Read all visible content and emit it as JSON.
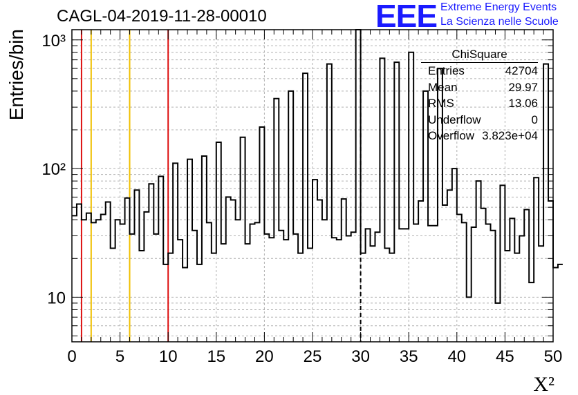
{
  "chart_title": "CAGL-04-2019-11-28-00010",
  "logo": {
    "mark": "EEE",
    "line1": "Extreme Energy Events",
    "line2": "La Scienza nelle Scuole"
  },
  "stats": {
    "title": "ChiSquare",
    "rows": [
      {
        "key": "Entries",
        "value": "42704"
      },
      {
        "key": "Mean",
        "value": "29.97"
      },
      {
        "key": "RMS",
        "value": "13.06"
      },
      {
        "key": "Underflow",
        "value": "0"
      },
      {
        "key": "Overflow",
        "value": "3.823e+04"
      }
    ]
  },
  "colors": {
    "histogram": "#000000",
    "red_lines": "#dd1111",
    "yellow_lines": "#f0c000",
    "grid": "#b0b0b0",
    "logo": "#1a1aff"
  },
  "chart_data": {
    "type": "histogram",
    "title": "CAGL-04-2019-11-28-00010",
    "xlabel": "X²",
    "ylabel": "Entries/bin",
    "yscale": "log",
    "xlim": [
      0,
      50
    ],
    "ylim": [
      4.5,
      1200
    ],
    "grid": true,
    "bin_width": 0.5,
    "x_ticks": [
      0,
      5,
      10,
      15,
      20,
      25,
      30,
      35,
      40,
      45,
      50
    ],
    "y_ticks": [
      {
        "value": 10,
        "label": "10"
      },
      {
        "value": 100,
        "label": "10²"
      },
      {
        "value": 1000,
        "label": "10³"
      }
    ],
    "values": [
      43,
      53,
      40,
      45,
      38,
      40,
      44,
      55,
      24,
      40,
      37,
      59,
      31,
      68,
      23,
      46,
      76,
      31,
      87,
      18,
      22,
      110,
      28,
      17,
      118,
      33,
      18,
      125,
      38,
      22,
      160,
      26,
      60,
      57,
      40,
      175,
      26,
      37,
      38,
      210,
      31,
      29,
      350,
      33,
      28,
      400,
      31,
      22,
      550,
      24,
      82,
      57,
      40,
      650,
      29,
      28,
      58,
      30,
      32,
      1200,
      22,
      34,
      25,
      32,
      720,
      24,
      22,
      670,
      34,
      34,
      800,
      37,
      56,
      400,
      36,
      36,
      600,
      52,
      68,
      100,
      44,
      38,
      10,
      35,
      80,
      49,
      37,
      33,
      9,
      74,
      23,
      41,
      22,
      30,
      48,
      13,
      85,
      25,
      650,
      56,
      17,
      18
    ],
    "vertical_lines": [
      {
        "x": 1,
        "color": "red",
        "style": "solid"
      },
      {
        "x": 2,
        "color": "yellow",
        "style": "solid"
      },
      {
        "x": 6,
        "color": "yellow",
        "style": "solid"
      },
      {
        "x": 10,
        "color": "red",
        "style": "solid"
      },
      {
        "x": 30,
        "color": "black",
        "style": "dashed"
      }
    ]
  }
}
